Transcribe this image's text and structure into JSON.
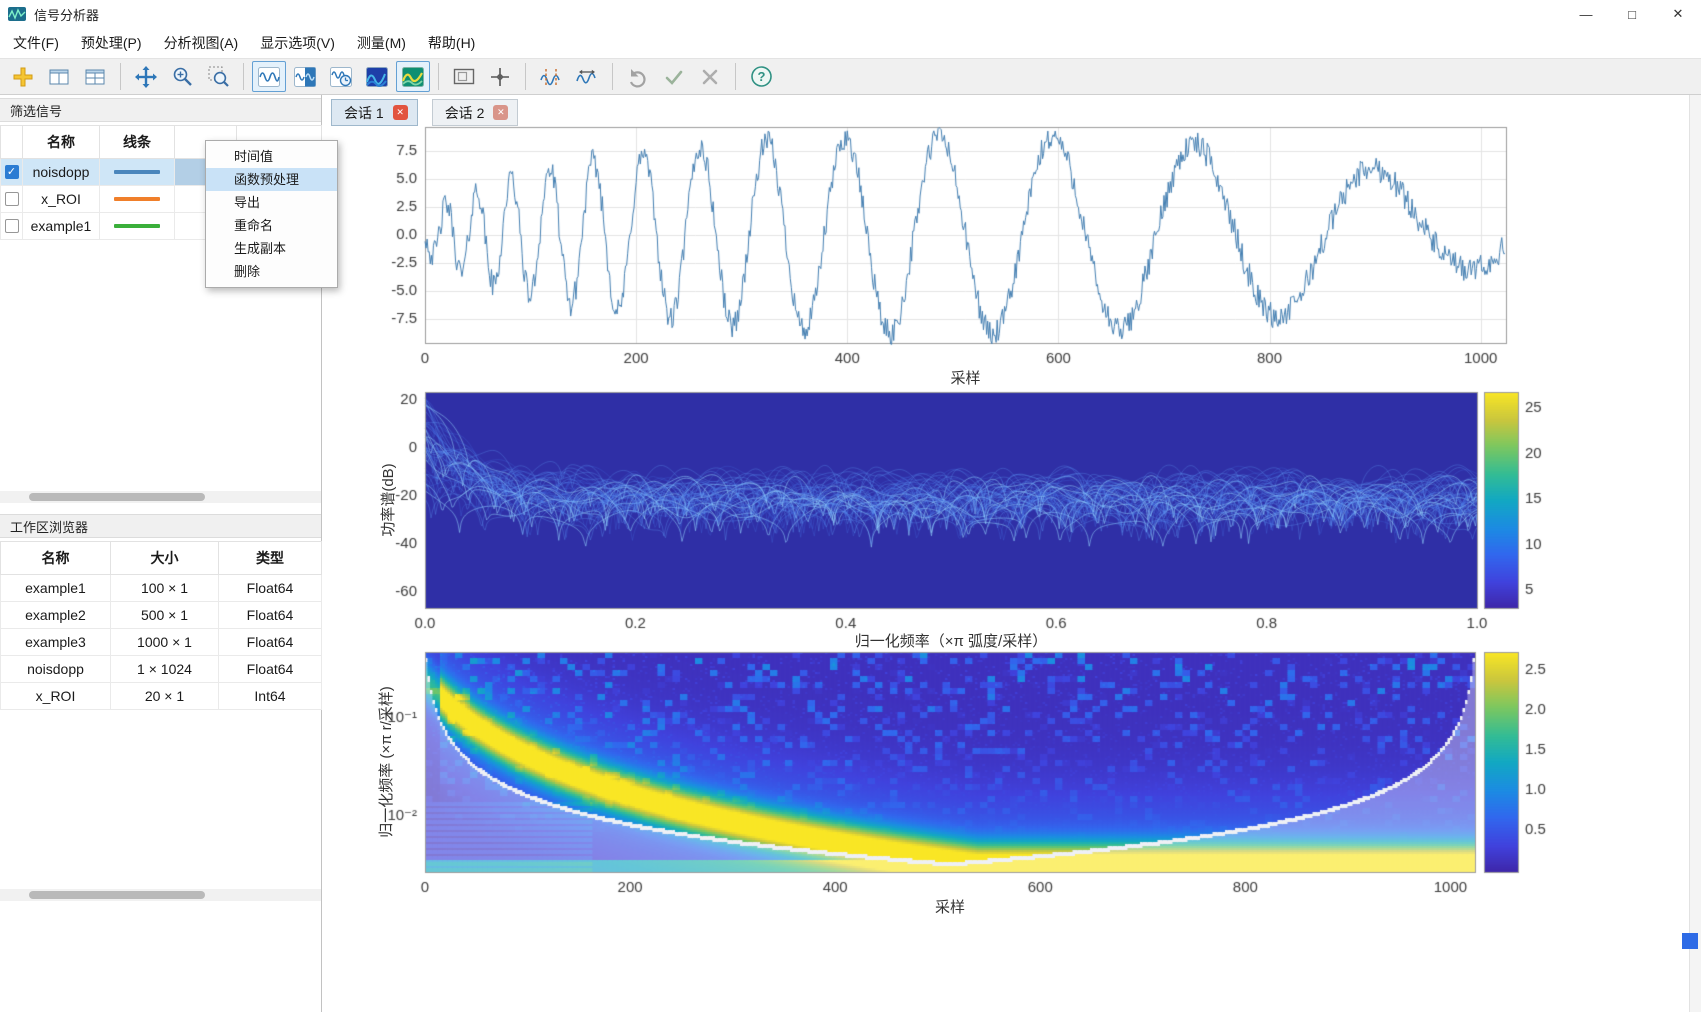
{
  "window": {
    "title": "信号分析器",
    "controls": {
      "minimize": "—",
      "maximize": "□",
      "close": "✕"
    }
  },
  "menu": {
    "items": [
      {
        "key": "file",
        "label": "文件(F)"
      },
      {
        "key": "preprocess",
        "label": "预处理(P)"
      },
      {
        "key": "analysis-view",
        "label": "分析视图(A)"
      },
      {
        "key": "display-options",
        "label": "显示选项(V)"
      },
      {
        "key": "measure",
        "label": "测量(M)"
      },
      {
        "key": "help",
        "label": "帮助(H)"
      }
    ]
  },
  "toolbar": {
    "icons": [
      {
        "name": "add-signal-icon",
        "kind": "plus"
      },
      {
        "name": "layout-split-icon",
        "kind": "layout1"
      },
      {
        "name": "layout-grid-icon",
        "kind": "layout2"
      },
      {
        "kind": "sep"
      },
      {
        "name": "pan-icon",
        "kind": "pan"
      },
      {
        "name": "zoom-in-icon",
        "kind": "zoom"
      },
      {
        "name": "zoom-region-icon",
        "kind": "zoomregion"
      },
      {
        "kind": "sep"
      },
      {
        "name": "time-view-icon",
        "kind": "viewtime",
        "selected": true
      },
      {
        "name": "split-view-icon",
        "kind": "viewsplit"
      },
      {
        "name": "time-frequency-view-icon",
        "kind": "viewclock"
      },
      {
        "name": "spectrum-view-icon",
        "kind": "viewspecblue"
      },
      {
        "name": "spectrogram-view-icon",
        "kind": "viewspecgreen",
        "selected": true
      },
      {
        "kind": "sep"
      },
      {
        "name": "panner-icon",
        "kind": "panner"
      },
      {
        "name": "data-cursor-icon",
        "kind": "cursor"
      },
      {
        "kind": "sep"
      },
      {
        "name": "measure-cursors-icon",
        "kind": "measure1"
      },
      {
        "name": "measure-distance-icon",
        "kind": "measure2"
      },
      {
        "kind": "sep"
      },
      {
        "name": "undo-icon",
        "kind": "undo"
      },
      {
        "name": "accept-icon",
        "kind": "accept"
      },
      {
        "name": "cancel-icon",
        "kind": "cancel"
      },
      {
        "kind": "sep"
      },
      {
        "name": "help-icon",
        "kind": "helpq"
      }
    ]
  },
  "filter_panel": {
    "title": "筛选信号",
    "columns": [
      "",
      "名称",
      "线条",
      "",
      ""
    ],
    "rows": [
      {
        "name": "noisdopp",
        "checked": true,
        "selected": true,
        "line_color": "#4a86bc"
      },
      {
        "name": "x_ROI",
        "checked": false,
        "selected": false,
        "line_color": "#f07f2a"
      },
      {
        "name": "example1",
        "checked": false,
        "selected": false,
        "line_color": "#3aaf3a"
      }
    ]
  },
  "context_menu": {
    "items": [
      {
        "label": "时间值"
      },
      {
        "label": "函数预处理",
        "highlighted": true
      },
      {
        "label": "导出"
      },
      {
        "label": "重命名"
      },
      {
        "label": "生成副本"
      },
      {
        "label": "删除"
      }
    ]
  },
  "workspace_panel": {
    "title": "工作区浏览器",
    "columns": [
      "名称",
      "大小",
      "类型"
    ],
    "rows": [
      {
        "name": "example1",
        "size": "100 × 1",
        "type": "Float64"
      },
      {
        "name": "example2",
        "size": "500 × 1",
        "type": "Float64"
      },
      {
        "name": "example3",
        "size": "1000 × 1",
        "type": "Float64"
      },
      {
        "name": "noisdopp",
        "size": "1 × 1024",
        "type": "Float64"
      },
      {
        "name": "x_ROI",
        "size": "20 × 1",
        "type": "Int64"
      }
    ]
  },
  "session_tabs": [
    {
      "label": "会话 1",
      "active": true
    },
    {
      "label": "会话 2",
      "active": false
    }
  ],
  "close_glyph": "✕",
  "check_glyph": "✓",
  "plots": {
    "time_plot": {
      "type": "line",
      "signal": "noisdopp",
      "line_color": "#447fb2",
      "xlabel": "采样",
      "xticks": [
        0,
        200,
        400,
        600,
        800,
        1000
      ],
      "yticks": [
        "7.5",
        "5.0",
        "2.5",
        "0.0",
        "-2.5",
        "-5.0",
        "-7.5"
      ],
      "xlim": [
        0,
        1024
      ],
      "ylim": [
        -9.7,
        9.7
      ],
      "description": "噪声多普勒信号：起始振荡快、频率随采样递减，包络先增后减，叠加随机噪声"
    },
    "spectrum_plot": {
      "type": "persistence-spectrum",
      "ylabel": "功率谱(dB)",
      "xlabel": "归一化频率（×π 弧度/采样）",
      "yticks": [
        "20",
        "0",
        "-20",
        "-40",
        "-60"
      ],
      "xticks": [
        "0.0",
        "0.2",
        "0.4",
        "0.6",
        "0.8",
        "1.0"
      ],
      "background": "#2f2fa6",
      "colorbar_ticks": [
        "25",
        "20",
        "15",
        "10",
        "5"
      ],
      "description": "多段功率谱叠加：左端升至约20dB，随后在-20dB附近波动并带周期性深谷"
    },
    "scalogram_plot": {
      "type": "scalogram",
      "ylabel": "归一化频率 (×π r/采样)",
      "xlabel": "采样",
      "yticks": [
        "10⁻¹",
        "10⁻²"
      ],
      "xticks": [
        0,
        200,
        400,
        600,
        800,
        1000
      ],
      "colorbar_ticks": [
        "2.5",
        "2.0",
        "1.5",
        "1.0",
        "0.5"
      ],
      "description": "小波量图：亮黄色脊线频率由约0.25递减至0.003，底部有连续亮带，边缘为影响锥白线"
    }
  }
}
